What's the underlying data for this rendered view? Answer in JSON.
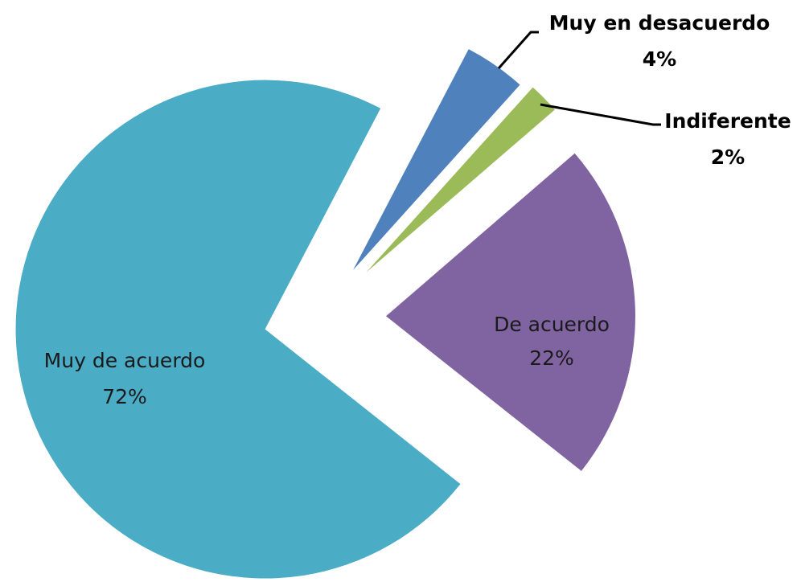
{
  "chart_data": {
    "type": "pie",
    "categories": [
      "Muy en desacuerdo",
      "Indiferente",
      "De acuerdo",
      "Muy de acuerdo"
    ],
    "values": [
      4,
      2,
      22,
      72
    ],
    "value_labels": [
      "4%",
      "2%",
      "22%",
      "72%"
    ],
    "colors": [
      "#4f81bd",
      "#9bbb59",
      "#8064a2",
      "#4bacc6"
    ]
  }
}
